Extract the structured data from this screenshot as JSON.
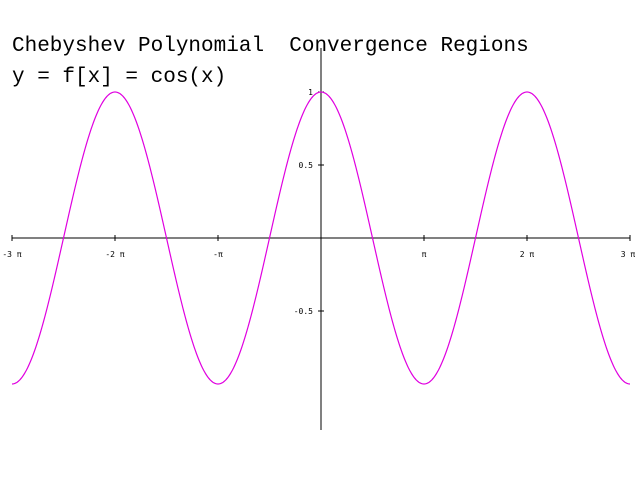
{
  "chart_data": {
    "type": "line",
    "title": "Chebyshev Polynomial  Convergence Regions",
    "subtitle": "y = f[x] = cos(x)",
    "xlabel": "",
    "ylabel": "",
    "x_tick_labels": [
      "-3 π",
      "-2 π",
      "-π",
      "π",
      "2 π",
      "3 π"
    ],
    "x_ticks": [
      -9.42478,
      -6.28319,
      -3.14159,
      3.14159,
      6.28319,
      9.42478
    ],
    "y_tick_labels": [
      "1",
      "0.5",
      "-0.5"
    ],
    "y_ticks": [
      1,
      0.5,
      -0.5
    ],
    "xlim": [
      -9.42478,
      9.42478
    ],
    "ylim": [
      -1.3,
      1.3
    ],
    "grid": false,
    "series": [
      {
        "function": "cos(x)",
        "color": "#e000e0",
        "x": [
          -9.42478,
          -7.85398,
          -6.28319,
          -4.71239,
          -3.14159,
          -1.5708,
          0,
          1.5708,
          3.14159,
          4.71239,
          6.28319,
          7.85398,
          9.42478
        ],
        "values": [
          -1,
          0,
          1,
          0,
          -1,
          0,
          1,
          0,
          -1,
          0,
          1,
          0,
          -1
        ]
      }
    ]
  }
}
